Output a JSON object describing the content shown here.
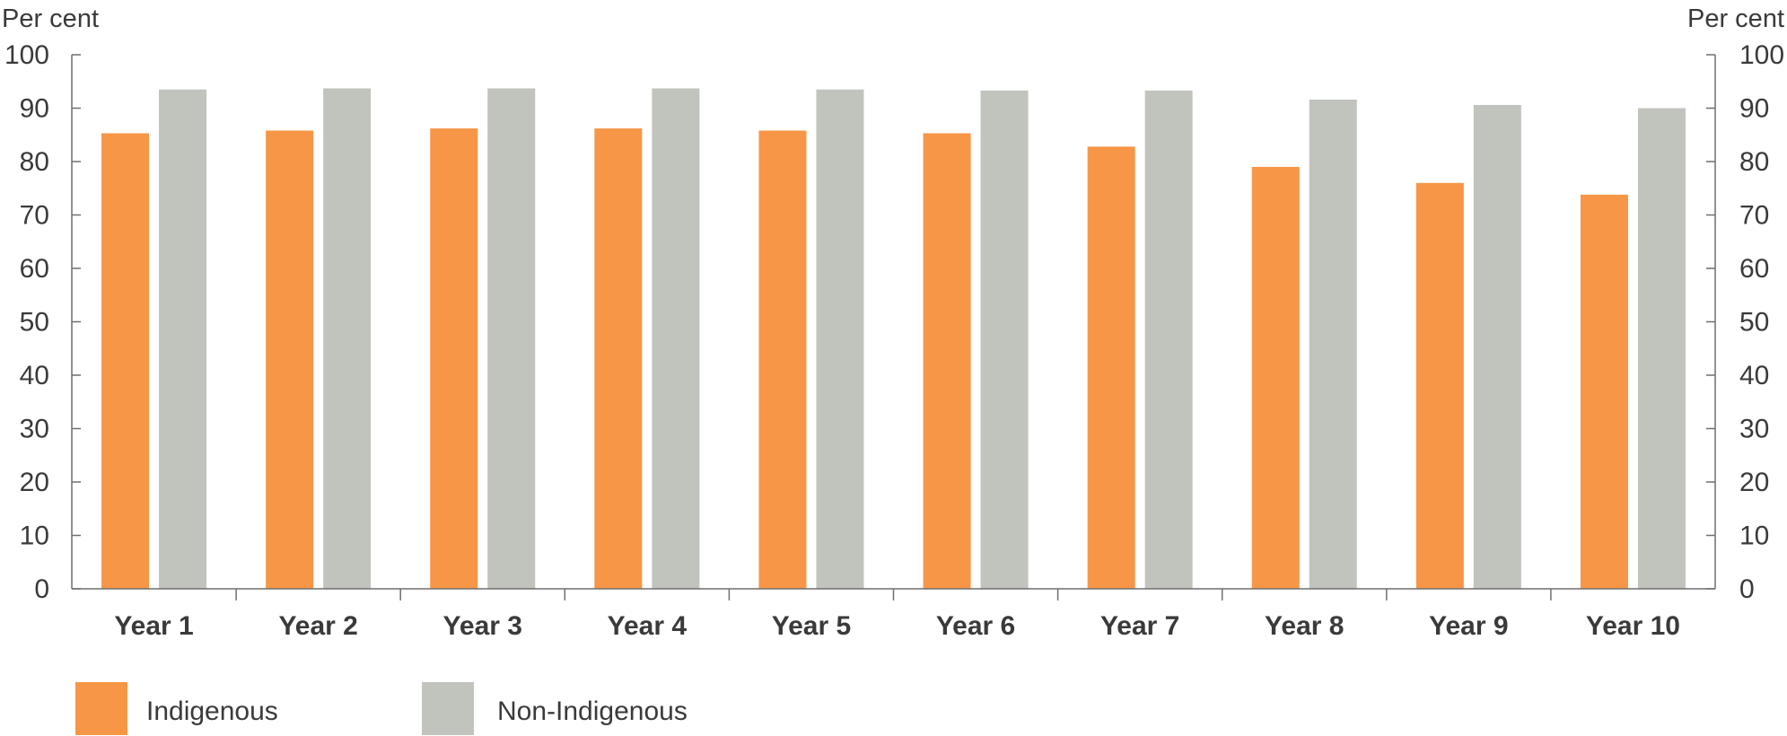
{
  "chart_data": {
    "type": "bar",
    "ylabel_left": "Per cent",
    "ylabel_right": "Per cent",
    "ylim": [
      0,
      100
    ],
    "yticks": [
      0,
      10,
      20,
      30,
      40,
      50,
      60,
      70,
      80,
      90,
      100
    ],
    "grid": false,
    "legend_position": "bottom-left",
    "categories": [
      "Year 1",
      "Year 2",
      "Year 3",
      "Year 4",
      "Year 5",
      "Year 6",
      "Year 7",
      "Year 8",
      "Year 9",
      "Year 10"
    ],
    "series": [
      {
        "name": "Indigenous",
        "color": "#f79646",
        "values": [
          85.3,
          85.8,
          86.2,
          86.2,
          85.8,
          85.3,
          82.8,
          79.0,
          76.0,
          73.8
        ]
      },
      {
        "name": "Non-Indigenous",
        "color": "#c0c4bd",
        "values": [
          93.5,
          93.7,
          93.7,
          93.7,
          93.5,
          93.3,
          93.3,
          91.6,
          90.6,
          90.0
        ]
      }
    ]
  }
}
